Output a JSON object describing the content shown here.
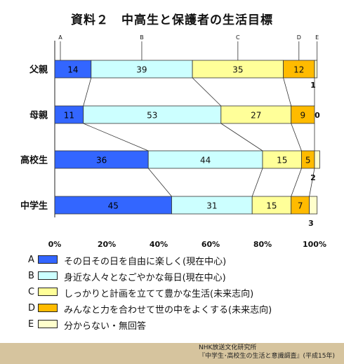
{
  "title": "資料２　中高生と保護者の生活目標",
  "footer": {
    "line1": "NHK放送文化研究所",
    "line2": "『中学生･高校生の生活と意識調査』(平成15年)"
  },
  "chart_data": {
    "type": "bar",
    "orientation": "horizontal",
    "stacked": true,
    "categories": [
      "父親",
      "母親",
      "高校生",
      "中学生"
    ],
    "series": [
      {
        "name": "A",
        "color": "#3366ff",
        "values": [
          14,
          11,
          36,
          45
        ]
      },
      {
        "name": "B",
        "color": "#ccffff",
        "values": [
          39,
          53,
          44,
          31
        ]
      },
      {
        "name": "C",
        "color": "#ffff99",
        "values": [
          35,
          27,
          15,
          15
        ]
      },
      {
        "name": "D",
        "color": "#ffbb00",
        "values": [
          12,
          9,
          5,
          7
        ]
      },
      {
        "name": "E",
        "color": "#ffffcc",
        "values": [
          1,
          0,
          2,
          3
        ]
      }
    ],
    "xlim": [
      0,
      100
    ],
    "xticks": [
      "0%",
      "20%",
      "40%",
      "60%",
      "80%",
      "100%"
    ],
    "small_value_labels": [
      "1",
      "0",
      "2",
      "3"
    ],
    "legend": [
      {
        "letter": "A",
        "text": "その日その日を自由に楽しく(現在中心)"
      },
      {
        "letter": "B",
        "text": "身近な人々となごやかな毎日(現在中心)"
      },
      {
        "letter": "C",
        "text": "しっかりと計画を立てて豊かな生活(未来志向)"
      },
      {
        "letter": "D",
        "text": "みんなと力を合わせて世の中をよくする(未来志向)"
      },
      {
        "letter": "E",
        "text": "分からない・無回答"
      }
    ]
  }
}
